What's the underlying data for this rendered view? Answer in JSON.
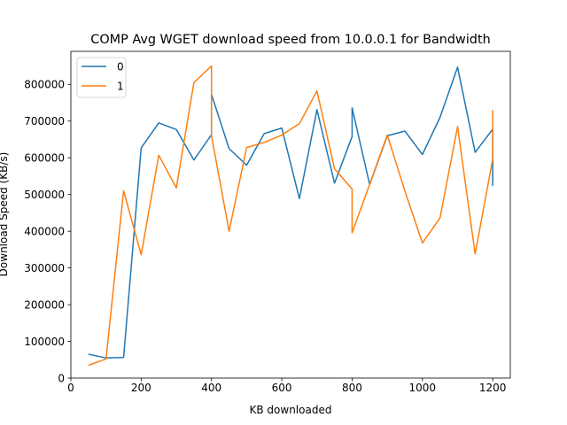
{
  "chart_data": {
    "type": "line",
    "title": "COMP Avg WGET download speed from 10.0.0.1 for Bandwidth",
    "xlabel": "KB downloaded",
    "ylabel": "Download Speed (KB/s)",
    "xlim": [
      0,
      1250
    ],
    "ylim": [
      0,
      890000
    ],
    "xticks": [
      0,
      200,
      400,
      600,
      800,
      1000,
      1200
    ],
    "yticks": [
      0,
      100000,
      200000,
      300000,
      400000,
      500000,
      600000,
      700000,
      800000
    ],
    "grid": false,
    "legend_position": "top-left",
    "series": [
      {
        "name": "0",
        "color": "#1f77b4",
        "points": [
          [
            50,
            65000
          ],
          [
            100,
            55000
          ],
          [
            150,
            56000
          ],
          [
            200,
            627000
          ],
          [
            250,
            695000
          ],
          [
            300,
            677000
          ],
          [
            350,
            594000
          ],
          [
            400,
            663000
          ],
          [
            400,
            773000
          ],
          [
            450,
            625000
          ],
          [
            500,
            580000
          ],
          [
            550,
            666000
          ],
          [
            600,
            681000
          ],
          [
            650,
            489000
          ],
          [
            700,
            731000
          ],
          [
            750,
            531000
          ],
          [
            800,
            658000
          ],
          [
            800,
            736000
          ],
          [
            850,
            527000
          ],
          [
            900,
            660000
          ],
          [
            950,
            673000
          ],
          [
            1000,
            609000
          ],
          [
            1050,
            710000
          ],
          [
            1100,
            847000
          ],
          [
            1150,
            615000
          ],
          [
            1200,
            678000
          ],
          [
            1200,
            524000
          ]
        ]
      },
      {
        "name": "1",
        "color": "#ff7f0e",
        "points": [
          [
            50,
            35000
          ],
          [
            100,
            52000
          ],
          [
            150,
            510000
          ],
          [
            200,
            336000
          ],
          [
            250,
            607000
          ],
          [
            300,
            518000
          ],
          [
            350,
            805000
          ],
          [
            400,
            850000
          ],
          [
            400,
            660000
          ],
          [
            450,
            400000
          ],
          [
            500,
            628000
          ],
          [
            550,
            642000
          ],
          [
            600,
            662000
          ],
          [
            650,
            693000
          ],
          [
            700,
            782000
          ],
          [
            750,
            570000
          ],
          [
            800,
            515000
          ],
          [
            800,
            396000
          ],
          [
            850,
            528000
          ],
          [
            900,
            662000
          ],
          [
            950,
            510000
          ],
          [
            1000,
            368000
          ],
          [
            1050,
            436000
          ],
          [
            1100,
            685000
          ],
          [
            1150,
            338000
          ],
          [
            1200,
            597000
          ],
          [
            1200,
            730000
          ]
        ]
      }
    ]
  }
}
